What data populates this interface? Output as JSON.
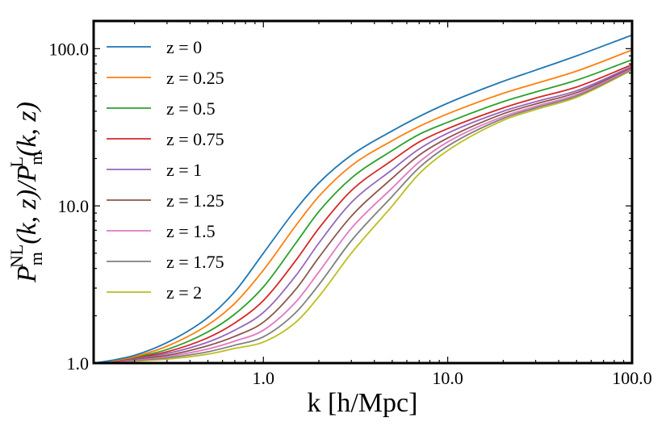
{
  "chart_data": {
    "type": "line",
    "xscale": "log",
    "yscale": "log",
    "xlim": [
      0.12,
      100.0
    ],
    "ylim": [
      1.0,
      150.0
    ],
    "xticks": [
      1.0,
      10.0,
      100.0
    ],
    "yticks": [
      1.0,
      10.0,
      100.0
    ],
    "xtick_labels": [
      "1.0",
      "10.0",
      "100.0"
    ],
    "ytick_labels": [
      "1.0",
      "10.0",
      "100.0"
    ],
    "xlabel": "k  [h/Mpc]",
    "ylabel": "P_m^NL(k, z)/P_m^L(k, z)",
    "legend_position": "upper-left",
    "x": [
      0.12,
      0.15,
      0.2,
      0.3,
      0.5,
      0.7,
      1.0,
      1.5,
      2.0,
      3.0,
      5.0,
      7.0,
      10.0,
      20.0,
      30.0,
      50.0,
      100.0
    ],
    "series": [
      {
        "name": "z = 0",
        "label": "z = 0",
        "color": "#1f77b4",
        "values": [
          1.0,
          1.04,
          1.12,
          1.35,
          1.95,
          2.85,
          5.0,
          9.5,
          14.0,
          21.0,
          30.0,
          37.0,
          45.0,
          62.0,
          73.0,
          90.0,
          122.0
        ]
      },
      {
        "name": "z = 0.25",
        "label": "z = 0.25",
        "color": "#ff7f0e",
        "values": [
          1.0,
          1.03,
          1.1,
          1.28,
          1.75,
          2.4,
          3.9,
          7.5,
          11.5,
          18.0,
          26.0,
          32.0,
          38.5,
          52.0,
          60.0,
          72.0,
          98.0
        ]
      },
      {
        "name": "z = 0.5",
        "label": "z = 0.5",
        "color": "#2ca02c",
        "values": [
          1.0,
          1.03,
          1.09,
          1.22,
          1.58,
          2.05,
          3.05,
          5.8,
          9.2,
          15.0,
          22.5,
          28.5,
          34.0,
          46.0,
          53.0,
          63.0,
          85.0
        ]
      },
      {
        "name": "z = 0.75",
        "label": "z = 0.75",
        "color": "#d62728",
        "values": [
          1.0,
          1.02,
          1.08,
          1.18,
          1.45,
          1.8,
          2.5,
          4.5,
          7.2,
          12.5,
          19.5,
          25.5,
          31.0,
          42.0,
          48.5,
          57.0,
          79.0
        ]
      },
      {
        "name": "z = 1",
        "label": "z = 1",
        "color": "#9467bd",
        "values": [
          1.0,
          1.02,
          1.07,
          1.15,
          1.36,
          1.62,
          2.1,
          3.6,
          5.8,
          10.5,
          17.0,
          23.0,
          29.0,
          40.0,
          46.0,
          54.0,
          77.0
        ]
      },
      {
        "name": "z = 1.25",
        "label": "z = 1.25",
        "color": "#8c564b",
        "values": [
          1.0,
          1.02,
          1.06,
          1.12,
          1.29,
          1.48,
          1.82,
          2.95,
          4.7,
          8.6,
          15.0,
          21.0,
          27.0,
          38.5,
          44.5,
          52.5,
          76.0
        ]
      },
      {
        "name": "z = 1.5",
        "label": "z = 1.5",
        "color": "#e377c2",
        "values": [
          1.0,
          1.01,
          1.05,
          1.1,
          1.23,
          1.38,
          1.62,
          2.45,
          3.8,
          7.2,
          13.0,
          19.0,
          25.5,
          37.0,
          43.0,
          51.0,
          75.0
        ]
      },
      {
        "name": "z = 1.75",
        "label": "z = 1.75",
        "color": "#7f7f7f",
        "values": [
          1.0,
          1.01,
          1.04,
          1.08,
          1.18,
          1.3,
          1.47,
          2.1,
          3.15,
          6.0,
          11.5,
          17.5,
          24.0,
          36.0,
          42.0,
          50.0,
          74.0
        ]
      },
      {
        "name": "z = 2",
        "label": "z = 2",
        "color": "#bcbd22",
        "values": [
          1.0,
          1.01,
          1.03,
          1.06,
          1.14,
          1.24,
          1.36,
          1.82,
          2.65,
          5.0,
          10.0,
          16.0,
          22.5,
          35.0,
          41.0,
          49.0,
          73.0
        ]
      }
    ]
  }
}
